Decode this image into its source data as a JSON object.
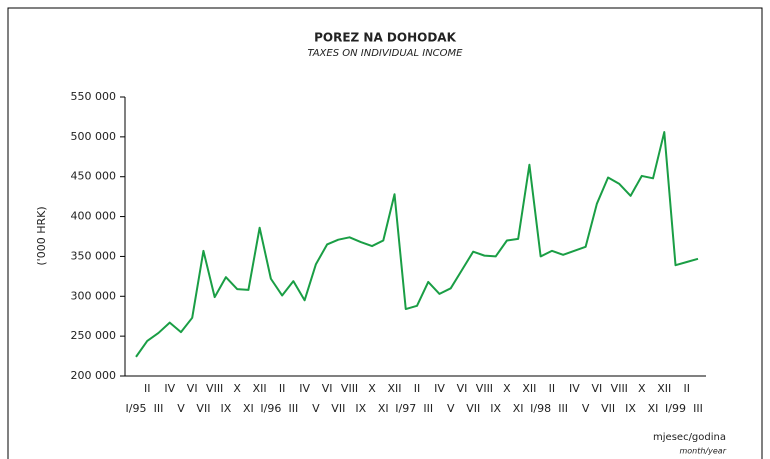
{
  "chart_data": {
    "type": "line",
    "title": "POREZ NA DOHODAK",
    "subtitle": "TAXES ON INDIVIDUAL INCOME",
    "y_label": "('000 HRK)",
    "x_label": "mjesec/godina",
    "x_label_en": "month/year",
    "categories": [
      "I/95",
      "II",
      "III",
      "IV",
      "V",
      "VI",
      "VII",
      "VIII",
      "IX",
      "X",
      "XI",
      "XII",
      "I/96",
      "II",
      "III",
      "IV",
      "V",
      "VI",
      "VII",
      "VIII",
      "IX",
      "X",
      "XI",
      "XII",
      "I/97",
      "II",
      "III",
      "IV",
      "V",
      "VI",
      "VII",
      "VIII",
      "IX",
      "X",
      "XI",
      "XII",
      "I/98",
      "II",
      "III",
      "IV",
      "V",
      "VI",
      "VII",
      "VIII",
      "IX",
      "X",
      "XI",
      "XII",
      "I/99",
      "II",
      "III"
    ],
    "series": [
      {
        "color": "#1a9e45",
        "values": [
          224000,
          244000,
          254000,
          267000,
          255000,
          273000,
          357000,
          299000,
          324000,
          309000,
          308000,
          386000,
          322000,
          301000,
          319000,
          295000,
          340000,
          365000,
          371000,
          374000,
          368000,
          363000,
          370000,
          428000,
          284000,
          288000,
          318000,
          303000,
          310000,
          333000,
          356000,
          351000,
          350000,
          370000,
          372000,
          465000,
          350000,
          357000,
          352000,
          357000,
          362000,
          416000,
          449000,
          441000,
          426000,
          451000,
          448000,
          506000,
          339000,
          343000,
          347000
        ]
      }
    ],
    "ylim": [
      200000,
      550000
    ],
    "yticks": [
      {
        "value": 200000,
        "label": "200 000"
      },
      {
        "value": 250000,
        "label": "250 000"
      },
      {
        "value": 300000,
        "label": "300 000"
      },
      {
        "value": 350000,
        "label": "350 000"
      },
      {
        "value": 400000,
        "label": "400 000"
      },
      {
        "value": 450000,
        "label": "450 000"
      },
      {
        "value": 500000,
        "label": "500 000"
      },
      {
        "value": 550000,
        "label": "550 000"
      }
    ]
  }
}
